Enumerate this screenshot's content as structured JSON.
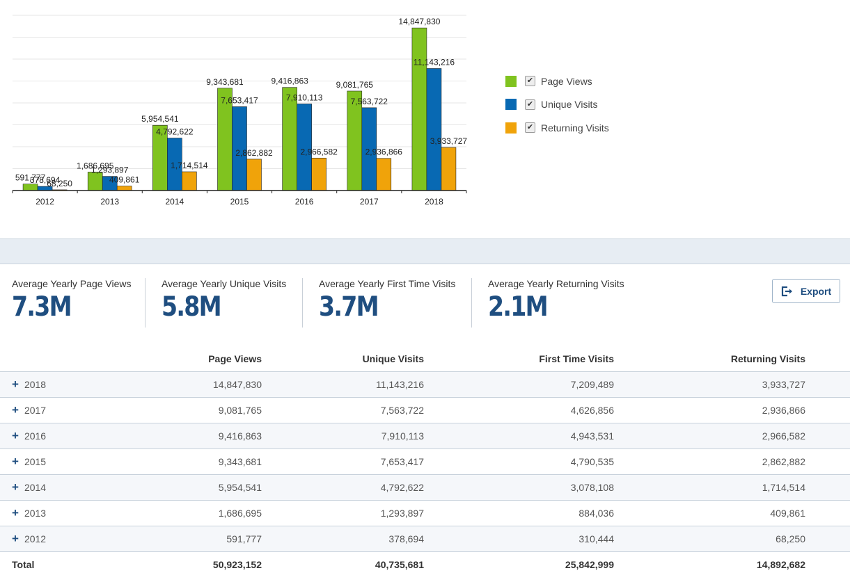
{
  "colors": {
    "page_views": "#80c31f",
    "unique_visits": "#0869b3",
    "returning_visits": "#f0a30a",
    "value_blue": "#1f4e80"
  },
  "chart_data": {
    "type": "bar",
    "categories": [
      "2012",
      "2013",
      "2014",
      "2015",
      "2016",
      "2017",
      "2018"
    ],
    "series": [
      {
        "name": "Page Views",
        "values": [
          591777,
          1686695,
          5954541,
          9343681,
          9416863,
          9081765,
          14847830
        ],
        "labels": [
          "591,777",
          "1,686,695",
          "5,954,541",
          "9,343,681",
          "9,416,863",
          "9,081,765",
          "14,847,830"
        ]
      },
      {
        "name": "Unique Visits",
        "values": [
          378694,
          1293897,
          4792622,
          7653417,
          7910113,
          7563722,
          11143216
        ],
        "labels": [
          "378,694",
          "1,293,897",
          "4,792,622",
          "7,653,417",
          "7,910,113",
          "7,563,722",
          "11,143,216"
        ]
      },
      {
        "name": "Returning Visits",
        "values": [
          68250,
          409861,
          1714514,
          2862882,
          2966582,
          2936866,
          3933727
        ],
        "labels": [
          "68,250",
          "409,861",
          "1,714,514",
          "2,862,882",
          "2,966,582",
          "2,936,866",
          "3,933,727"
        ]
      }
    ],
    "ylim": [
      0,
      16000000
    ],
    "grid": true,
    "legend_position": "right"
  },
  "legend": [
    {
      "label": "Page Views",
      "checked": true,
      "check_glyph": "✔"
    },
    {
      "label": "Unique Visits",
      "checked": true,
      "check_glyph": "✔"
    },
    {
      "label": "Returning Visits",
      "checked": true,
      "check_glyph": "✔"
    }
  ],
  "stats": [
    {
      "label": "Average Yearly Page Views",
      "value": "7.3M"
    },
    {
      "label": "Average Yearly Unique Visits",
      "value": "5.8M"
    },
    {
      "label": "Average Yearly First Time Visits",
      "value": "3.7M"
    },
    {
      "label": "Average Yearly Returning Visits",
      "value": "2.1M"
    }
  ],
  "export_label": "Export",
  "table": {
    "headers": [
      "Page Views",
      "Unique Visits",
      "First Time Visits",
      "Returning Visits"
    ],
    "rows": [
      {
        "year": "2018",
        "cells": [
          "14,847,830",
          "11,143,216",
          "7,209,489",
          "3,933,727"
        ]
      },
      {
        "year": "2017",
        "cells": [
          "9,081,765",
          "7,563,722",
          "4,626,856",
          "2,936,866"
        ]
      },
      {
        "year": "2016",
        "cells": [
          "9,416,863",
          "7,910,113",
          "4,943,531",
          "2,966,582"
        ]
      },
      {
        "year": "2015",
        "cells": [
          "9,343,681",
          "7,653,417",
          "4,790,535",
          "2,862,882"
        ]
      },
      {
        "year": "2014",
        "cells": [
          "5,954,541",
          "4,792,622",
          "3,078,108",
          "1,714,514"
        ]
      },
      {
        "year": "2013",
        "cells": [
          "1,686,695",
          "1,293,897",
          "884,036",
          "409,861"
        ]
      },
      {
        "year": "2012",
        "cells": [
          "591,777",
          "378,694",
          "310,444",
          "68,250"
        ]
      }
    ],
    "expand_glyph": "+",
    "total": {
      "label": "Total",
      "cells": [
        "50,923,152",
        "40,735,681",
        "25,842,999",
        "14,892,682"
      ]
    }
  }
}
